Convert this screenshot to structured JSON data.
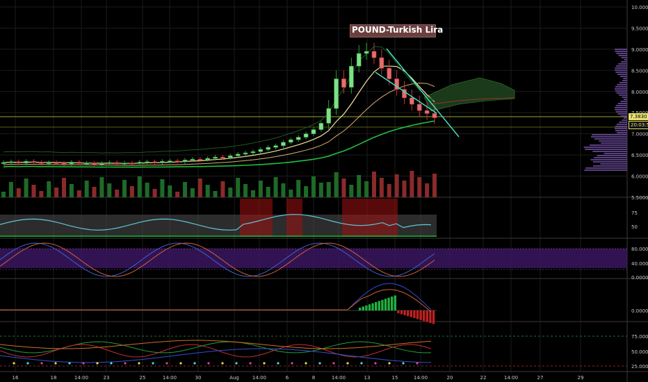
{
  "title": "POUND-Turkish Lira",
  "price_tags": {
    "last": "7.3830",
    "countdown": "20:03:56"
  },
  "x_axis_labels": [
    "16",
    "18",
    "14:00",
    "23",
    "25",
    "14:00",
    "30",
    "Aug",
    "14:00",
    "6",
    "8",
    "14:00",
    "13",
    "15",
    "14:00",
    "20",
    "22",
    "14:00",
    "27",
    "29"
  ],
  "panels": {
    "price": {
      "ticks": [
        "10.0000",
        "9.5000",
        "9.0000",
        "8.5000",
        "8.0000",
        "7.5000",
        "7.0000",
        "6.5000",
        "6.0000",
        "5.5000"
      ]
    },
    "rsi": {
      "ticks": [
        "75",
        "50"
      ]
    },
    "stoch": {
      "ticks": [
        "80.0000",
        "40.0000",
        "0.0000"
      ]
    },
    "macd": {
      "ticks": [
        "0.0000"
      ]
    },
    "adx": {
      "ticks": [
        "75.0000",
        "50.0000",
        "25.0000"
      ]
    }
  },
  "colors": {
    "up": "#2e9e3a",
    "down": "#c0353a",
    "accent": "#40e0c0",
    "ma_yellow": "#f5e6a0",
    "ma_green": "#20c040",
    "rsi_line": "#5fc8d8",
    "background": "#000000"
  },
  "chart_data": {
    "type": "candlestick",
    "title": "POUND-Turkish Lira",
    "y_range": [
      5.5,
      10.0
    ],
    "series_close": [
      6.32,
      6.34,
      6.31,
      6.35,
      6.33,
      6.3,
      6.32,
      6.31,
      6.29,
      6.33,
      6.3,
      6.31,
      6.28,
      6.3,
      6.32,
      6.29,
      6.31,
      6.3,
      6.33,
      6.34,
      6.32,
      6.35,
      6.36,
      6.34,
      6.38,
      6.4,
      6.39,
      6.42,
      6.45,
      6.44,
      6.48,
      6.52,
      6.55,
      6.58,
      6.63,
      6.68,
      6.72,
      6.8,
      6.86,
      6.92,
      7.0,
      7.1,
      7.25,
      7.6,
      8.3,
      8.1,
      8.6,
      8.9,
      8.95,
      8.8,
      8.55,
      8.3,
      8.05,
      7.85,
      7.7,
      7.55,
      7.48,
      7.38
    ],
    "last_value": 7.383
  }
}
